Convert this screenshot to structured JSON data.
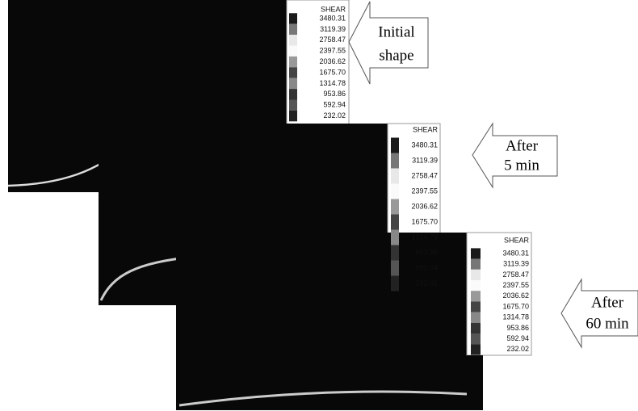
{
  "panels": [
    {
      "legend_title": "SHEAR",
      "legend_values": [
        "3480.31",
        "3119.39",
        "2758.47",
        "2397.55",
        "2036.62",
        "1675.70",
        "1314.78",
        "953.86",
        "592.94",
        "232.02"
      ],
      "arrow_label": [
        "Initial",
        "shape"
      ]
    },
    {
      "legend_title": "SHEAR",
      "legend_values": [
        "3480.31",
        "3119.39",
        "2758.47",
        "2397.55",
        "2036.62",
        "1675.70",
        "1314.78",
        "953.86",
        "592.94",
        "232.02"
      ],
      "arrow_label": [
        "After",
        "5 min"
      ]
    },
    {
      "legend_title": "SHEAR",
      "legend_values": [
        "3480.31",
        "3119.39",
        "2758.47",
        "2397.55",
        "2036.62",
        "1675.70",
        "1314.78",
        "953.86",
        "592.94",
        "232.02"
      ],
      "arrow_label": [
        "After",
        "60 min"
      ]
    }
  ]
}
